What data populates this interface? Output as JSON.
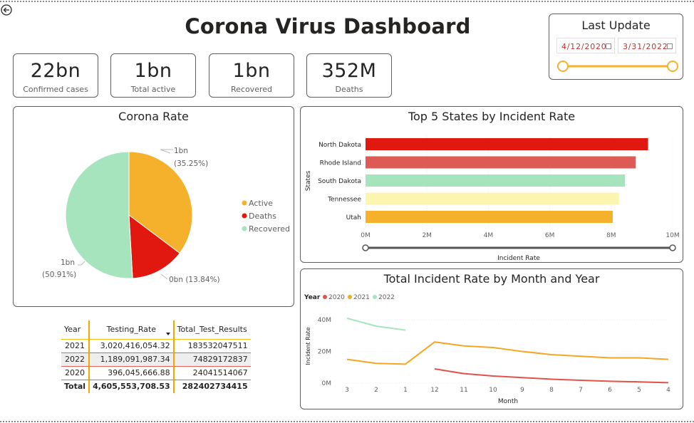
{
  "header": {
    "title": "Corona Virus Dashboard"
  },
  "kpis": [
    {
      "value": "22bn",
      "label": "Confirmed cases"
    },
    {
      "value": "1bn",
      "label": "Total active"
    },
    {
      "value": "1bn",
      "label": "Recovered"
    },
    {
      "value": "352M",
      "label": "Deaths"
    }
  ],
  "last_update": {
    "title": "Last Update",
    "start_date": "4/12/2020",
    "end_date": "3/31/2022",
    "range_start": 0,
    "range_end": 1
  },
  "pie": {
    "title": "Corona Rate",
    "slices": [
      {
        "name": "Active",
        "label": "1bn",
        "pct_label": "(35.25%)",
        "value": 35.25,
        "color": "#f5b12b"
      },
      {
        "name": "Deaths",
        "label": "0bn (13.84%)",
        "pct_label": "",
        "value": 13.84,
        "color": "#e0180f"
      },
      {
        "name": "Recovered",
        "label": "1bn",
        "pct_label": "(50.91%)",
        "value": 50.91,
        "color": "#a6e4bd"
      }
    ]
  },
  "states_chart": {
    "title": "Top 5 States by Incident Rate",
    "ylabel": "States",
    "xlabel": "Incident Rate",
    "ticks": [
      "0M",
      "2M",
      "4M",
      "6M",
      "8M",
      "10M"
    ],
    "xmax": 10,
    "bars": [
      {
        "state": "North Dakota",
        "value": 9.2,
        "color": "#e0180f"
      },
      {
        "state": "Rhode Island",
        "value": 8.8,
        "color": "#dd5a55"
      },
      {
        "state": "South Dakota",
        "value": 8.45,
        "color": "#a6e4bd"
      },
      {
        "state": "Tennessee",
        "value": 8.25,
        "color": "#fbf5b0"
      },
      {
        "state": "Utah",
        "value": 8.05,
        "color": "#f5b12b"
      }
    ]
  },
  "line_chart": {
    "title": "Total Incident Rate by Month and Year",
    "legend_title": "Year",
    "xlabel": "Month",
    "ylabel": "Incident Rate",
    "x_ticks": [
      "3",
      "2",
      "1",
      "12",
      "11",
      "10",
      "9",
      "8",
      "7",
      "6",
      "5",
      "4"
    ],
    "y_ticks": [
      "0M",
      "20M",
      "40M"
    ],
    "ymax": 45,
    "series": [
      {
        "name": "2020",
        "color": "#e0524c",
        "points": [
          [
            3,
            9
          ],
          [
            4,
            6
          ],
          [
            5,
            4.5
          ],
          [
            6,
            3.5
          ],
          [
            7,
            2.5
          ],
          [
            8,
            1.8
          ],
          [
            9,
            1.2
          ],
          [
            10,
            0.8
          ],
          [
            11,
            0.3
          ]
        ]
      },
      {
        "name": "2021",
        "color": "#f5a623",
        "points": [
          [
            0,
            15
          ],
          [
            1,
            12.5
          ],
          [
            2,
            12
          ],
          [
            3,
            26
          ],
          [
            4,
            23.5
          ],
          [
            5,
            22.5
          ],
          [
            6,
            20
          ],
          [
            7,
            18
          ],
          [
            8,
            17
          ],
          [
            9,
            16
          ],
          [
            10,
            16
          ],
          [
            11,
            15
          ]
        ]
      },
      {
        "name": "2022",
        "color": "#a6e4bd",
        "points": [
          [
            0,
            41
          ],
          [
            1,
            36
          ],
          [
            2,
            33.5
          ]
        ]
      }
    ]
  },
  "testing_table": {
    "headers": [
      "Year",
      "Testing_Rate",
      "Total_Test_Results"
    ],
    "rows": [
      [
        "2021",
        "3,020,416,054.32",
        "183532047511"
      ],
      [
        "2022",
        "1,189,091,987.34",
        "74829172837"
      ],
      [
        "2020",
        "396,045,666.88",
        "24041514067"
      ]
    ],
    "total": [
      "Total",
      "4,605,553,708.53",
      "282402734415"
    ]
  }
}
